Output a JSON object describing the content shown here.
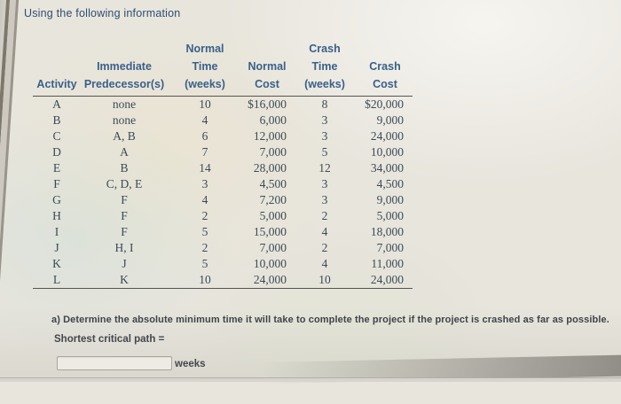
{
  "page": {
    "title": "Using the following information"
  },
  "table": {
    "columns": [
      {
        "label": "Activity"
      },
      {
        "label": "Immediate\nPredecessor(s)"
      },
      {
        "label": "Normal\nTime\n(weeks)"
      },
      {
        "label": "Normal\nCost"
      },
      {
        "label": "Crash\nTime\n(weeks)"
      },
      {
        "label": "Crash\nCost"
      }
    ],
    "rows": [
      [
        "A",
        "none",
        "10",
        "$16,000",
        "8",
        "$20,000"
      ],
      [
        "B",
        "none",
        "4",
        "6,000",
        "3",
        "9,000"
      ],
      [
        "C",
        "A, B",
        "6",
        "12,000",
        "3",
        "24,000"
      ],
      [
        "D",
        "A",
        "7",
        "7,000",
        "5",
        "10,000"
      ],
      [
        "E",
        "B",
        "14",
        "28,000",
        "12",
        "34,000"
      ],
      [
        "F",
        "C, D, E",
        "3",
        "4,500",
        "3",
        "4,500"
      ],
      [
        "G",
        "F",
        "4",
        "7,200",
        "3",
        "9,000"
      ],
      [
        "H",
        "F",
        "2",
        "5,000",
        "2",
        "5,000"
      ],
      [
        "I",
        "F",
        "5",
        "15,000",
        "4",
        "18,000"
      ],
      [
        "J",
        "H, I",
        "2",
        "7,000",
        "2",
        "7,000"
      ],
      [
        "K",
        "J",
        "5",
        "10,000",
        "4",
        "11,000"
      ],
      [
        "L",
        "K",
        "10",
        "24,000",
        "10",
        "24,000"
      ]
    ]
  },
  "question": {
    "part_a": "a) Determine the absolute minimum time it will take to complete the project if the project is crashed as far as possible.",
    "prompt": "Shortest critical path =",
    "answer_value": "",
    "unit_label": "weeks"
  },
  "colors": {
    "header_text": "#3a6089",
    "body_text": "#3c4a57",
    "background": "#e8e5dd"
  }
}
